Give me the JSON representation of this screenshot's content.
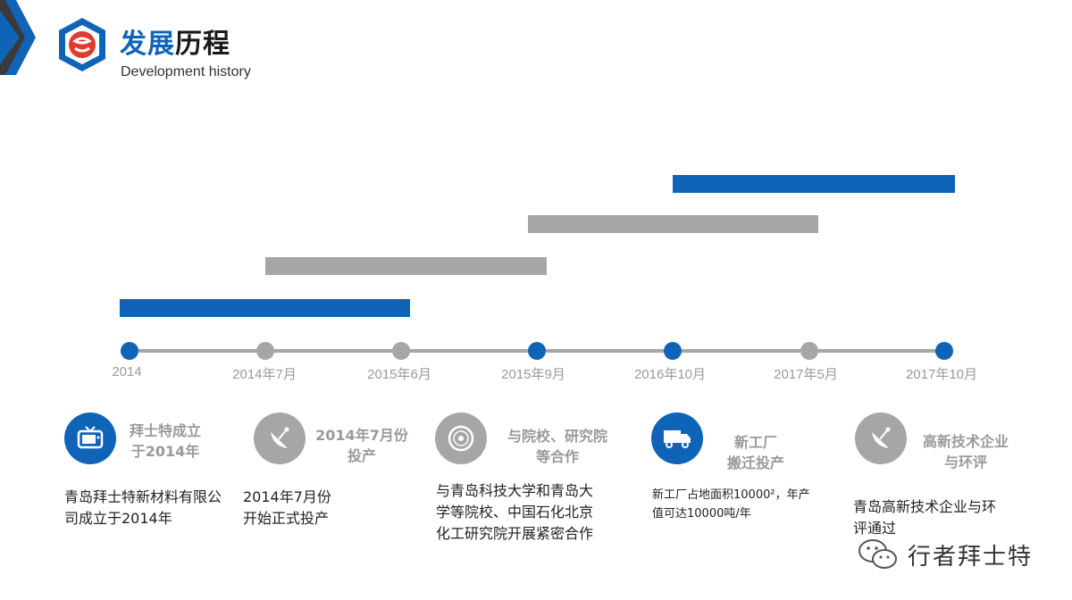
{
  "header": {
    "title_part1": "发展",
    "title_part2": "历程",
    "subtitle": "Development history"
  },
  "colors": {
    "blue": "#1064b8",
    "gray": "#a6a6a6"
  },
  "timeline": {
    "points": [
      {
        "label": "2014",
        "color": "blue"
      },
      {
        "label": "2014年7月",
        "color": "gray"
      },
      {
        "label": "2015年6月",
        "color": "gray"
      },
      {
        "label": "2015年9月",
        "color": "blue"
      },
      {
        "label": "2016年10月",
        "color": "blue"
      },
      {
        "label": "2017年5月",
        "color": "gray"
      },
      {
        "label": "2017年10月",
        "color": "blue"
      }
    ],
    "bars": [
      {
        "from": "2014",
        "to": "2015年6月",
        "color": "blue"
      },
      {
        "from": "2014年7月",
        "to": "2015年9月",
        "color": "gray"
      },
      {
        "from": "2015年9月",
        "to": "2017年5月",
        "color": "gray"
      },
      {
        "from": "2016年10月",
        "to": "2017年10月",
        "color": "blue"
      }
    ]
  },
  "features": [
    {
      "icon": "tv-icon",
      "title1": "拜士特成立",
      "title2": "于2014年",
      "desc1": "青岛拜士特新材料有限公",
      "desc2": "司成立于2014年",
      "desc3": ""
    },
    {
      "icon": "satellite-dish-icon",
      "title1": "2014年7月份",
      "title2": "投产",
      "desc1": "2014年7月份",
      "desc2": "开始正式投产",
      "desc3": ""
    },
    {
      "icon": "disc-icon",
      "title1": "与院校、研究院",
      "title2": "等合作",
      "desc1": "与青岛科技大学和青岛大",
      "desc2": "学等院校、中国石化北京",
      "desc3": "化工研究院开展紧密合作"
    },
    {
      "icon": "truck-icon",
      "title1": "新工厂",
      "title2": "搬迁投产",
      "desc1": "新工厂占地面积10000²，年产",
      "desc2": "值可达10000吨/年",
      "desc3": ""
    },
    {
      "icon": "satellite-dish-icon",
      "title1": "高新技术企业",
      "title2": "与环评",
      "desc1": "青岛高新技术企业与环",
      "desc2": "评通过",
      "desc3": ""
    }
  ],
  "watermark": {
    "text": "行者拜士特"
  }
}
